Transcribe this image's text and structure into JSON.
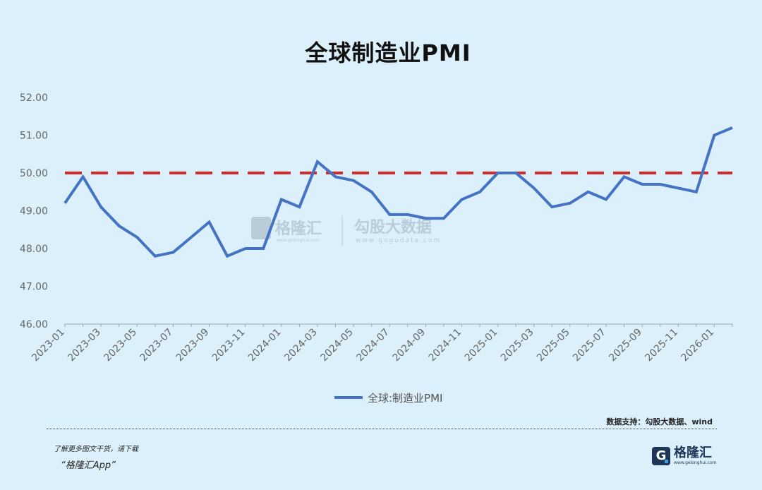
{
  "title": "全球制造业PMI",
  "watermark": {
    "brand": "格隆汇",
    "brand_url": "www.gelonghui.com",
    "slogan": "勾股大数据",
    "slogan_url": "www.gogudata.com"
  },
  "source_note": "数据支持：勾股大数据、wind",
  "promo": {
    "line1": "了解更多图文干货，请下载",
    "line2": "“格隆汇App”"
  },
  "brand_logo": {
    "mark": "G",
    "name": "格隆汇",
    "url": "www.gelonghui.com"
  },
  "colors": {
    "line": "#4472c4",
    "reference": "#d42a2a",
    "background": "#dcf0fb",
    "axis_text": "#666666"
  },
  "chart_data": {
    "type": "line",
    "title": "全球制造业PMI",
    "legend_position": "bottom",
    "grid": false,
    "y_range": [
      46,
      52
    ],
    "y_ticks": [
      "46.00",
      "47.00",
      "48.00",
      "49.00",
      "50.00",
      "51.00",
      "52.00"
    ],
    "x_tick_labels": [
      "2023-01",
      "2023-03",
      "2023-05",
      "2023-07",
      "2023-09",
      "2023-11",
      "2024-01",
      "2024-03",
      "2024-05",
      "2024-07",
      "2024-09",
      "2024-11",
      "2025-01",
      "2025-03",
      "2025-05",
      "2025-07",
      "2025-09",
      "2025-11",
      "2026-01"
    ],
    "reference_line": {
      "value": 50,
      "style": "dashed"
    },
    "x": [
      "2023-01",
      "2023-02",
      "2023-03",
      "2023-04",
      "2023-05",
      "2023-06",
      "2023-07",
      "2023-08",
      "2023-09",
      "2023-10",
      "2023-11",
      "2023-12",
      "2024-01",
      "2024-02",
      "2024-03",
      "2024-04",
      "2024-05",
      "2024-06",
      "2024-07",
      "2024-08",
      "2024-09",
      "2024-10",
      "2024-11",
      "2024-12",
      "2025-01",
      "2025-02",
      "2025-03",
      "2025-04",
      "2025-05",
      "2025-06",
      "2025-07",
      "2025-08",
      "2025-09",
      "2025-10",
      "2025-11",
      "2025-12",
      "2026-01",
      "2026-02"
    ],
    "series": [
      {
        "name": "全球:制造业PMI",
        "values": [
          49.2,
          49.9,
          49.1,
          48.6,
          48.3,
          47.8,
          47.9,
          48.3,
          48.7,
          47.8,
          48.0,
          48.0,
          49.3,
          49.1,
          50.3,
          49.9,
          49.8,
          49.5,
          48.9,
          48.9,
          48.8,
          48.8,
          49.3,
          49.5,
          50.0,
          50.0,
          49.6,
          49.1,
          49.2,
          49.5,
          49.3,
          49.9,
          49.7,
          49.7,
          49.6,
          49.5,
          51.0,
          51.2
        ]
      }
    ]
  }
}
